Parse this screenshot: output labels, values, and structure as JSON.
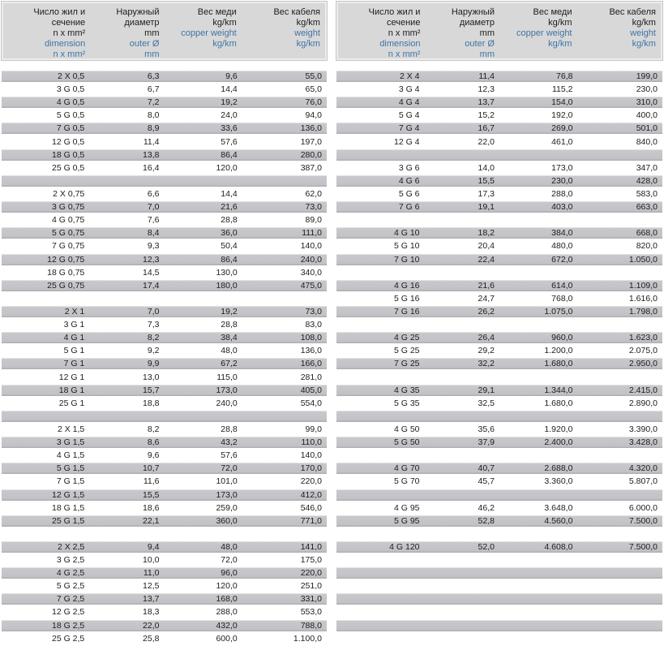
{
  "colors": {
    "header_bg": "#d8d8d8",
    "row_gray": "#c2c2c6",
    "accent_blue": "#3f74a6",
    "text": "#1c1c1c"
  },
  "header": {
    "col_dimension": {
      "ru1": "Число жил и",
      "ru2": "сечение",
      "ru3": "n x mm²",
      "en1": "dimension",
      "en2": "n x mm²"
    },
    "col_outer": {
      "ru1": "Наружный",
      "ru2": "диаметр",
      "ru3": "mm",
      "en1": "outer Ø",
      "en2": "mm"
    },
    "col_copper": {
      "ru1": "Вес меди",
      "ru2": "kg/km",
      "en1": "copper weight",
      "en2": "kg/km"
    },
    "col_cable": {
      "ru1": "Вес кабеля",
      "ru2": "kg/km",
      "en1": "weight",
      "en2": "kg/km"
    }
  },
  "tables": [
    {
      "rows": [
        [
          "2 X 0,5",
          "6,3",
          "9,6",
          "55,0"
        ],
        [
          "3 G 0,5",
          "6,7",
          "14,4",
          "65,0"
        ],
        [
          "4 G 0,5",
          "7,2",
          "19,2",
          "76,0"
        ],
        [
          "5 G 0,5",
          "8,0",
          "24,0",
          "94,0"
        ],
        [
          "7 G 0,5",
          "8,9",
          "33,6",
          "136,0"
        ],
        [
          "12 G 0,5",
          "11,4",
          "57,6",
          "197,0"
        ],
        [
          "18 G 0,5",
          "13,8",
          "86,4",
          "280,0"
        ],
        [
          "25 G 0,5",
          "16,4",
          "120,0",
          "387,0"
        ],
        null,
        [
          "2 X 0,75",
          "6,6",
          "14,4",
          "62,0"
        ],
        [
          "3 G 0,75",
          "7,0",
          "21,6",
          "73,0"
        ],
        [
          "4 G 0,75",
          "7,6",
          "28,8",
          "89,0"
        ],
        [
          "5 G 0,75",
          "8,4",
          "36,0",
          "111,0"
        ],
        [
          "7 G 0,75",
          "9,3",
          "50,4",
          "140,0"
        ],
        [
          "12 G 0,75",
          "12,3",
          "86,4",
          "240,0"
        ],
        [
          "18 G 0,75",
          "14,5",
          "130,0",
          "340,0"
        ],
        [
          "25 G 0,75",
          "17,4",
          "180,0",
          "475,0"
        ],
        null,
        [
          "2 X 1",
          "7,0",
          "19,2",
          "73,0"
        ],
        [
          "3 G 1",
          "7,3",
          "28,8",
          "83,0"
        ],
        [
          "4 G 1",
          "8,2",
          "38,4",
          "108,0"
        ],
        [
          "5 G 1",
          "9,2",
          "48,0",
          "136,0"
        ],
        [
          "7 G 1",
          "9,9",
          "67,2",
          "166,0"
        ],
        [
          "12 G 1",
          "13,0",
          "115,0",
          "281,0"
        ],
        [
          "18 G 1",
          "15,7",
          "173,0",
          "405,0"
        ],
        [
          "25 G 1",
          "18,8",
          "240,0",
          "554,0"
        ],
        null,
        [
          "2 X 1,5",
          "8,2",
          "28,8",
          "99,0"
        ],
        [
          "3 G 1,5",
          "8,6",
          "43,2",
          "110,0"
        ],
        [
          "4 G 1,5",
          "9,6",
          "57,6",
          "140,0"
        ],
        [
          "5 G 1,5",
          "10,7",
          "72,0",
          "170,0"
        ],
        [
          "7 G 1,5",
          "11,6",
          "101,0",
          "220,0"
        ],
        [
          "12 G 1,5",
          "15,5",
          "173,0",
          "412,0"
        ],
        [
          "18 G 1,5",
          "18,6",
          "259,0",
          "546,0"
        ],
        [
          "25 G 1,5",
          "22,1",
          "360,0",
          "771,0"
        ],
        null,
        [
          "2 X 2,5",
          "9,4",
          "48,0",
          "141,0"
        ],
        [
          "3 G 2,5",
          "10,0",
          "72,0",
          "175,0"
        ],
        [
          "4 G 2,5",
          "11,0",
          "96,0",
          "220,0"
        ],
        [
          "5 G 2,5",
          "12,5",
          "120,0",
          "251,0"
        ],
        [
          "7 G 2,5",
          "13,7",
          "168,0",
          "331,0"
        ],
        [
          "12 G 2,5",
          "18,3",
          "288,0",
          "553,0"
        ],
        [
          "18 G 2,5",
          "22,0",
          "432,0",
          "788,0"
        ],
        [
          "25 G 2,5",
          "25,8",
          "600,0",
          "1.100,0"
        ]
      ]
    },
    {
      "rows": [
        [
          "2 X 4",
          "11,4",
          "76,8",
          "199,0"
        ],
        [
          "3 G 4",
          "12,3",
          "115,2",
          "230,0"
        ],
        [
          "4 G 4",
          "13,7",
          "154,0",
          "310,0"
        ],
        [
          "5 G 4",
          "15,2",
          "192,0",
          "400,0"
        ],
        [
          "7 G 4",
          "16,7",
          "269,0",
          "501,0"
        ],
        [
          "12 G 4",
          "22,0",
          "461,0",
          "840,0"
        ],
        null,
        [
          "3 G 6",
          "14,0",
          "173,0",
          "347,0"
        ],
        [
          "4 G 6",
          "15,5",
          "230,0",
          "428,0"
        ],
        [
          "5 G 6",
          "17,3",
          "288,0",
          "583,0"
        ],
        [
          "7 G 6",
          "19,1",
          "403,0",
          "663,0"
        ],
        null,
        [
          "4 G 10",
          "18,2",
          "384,0",
          "668,0"
        ],
        [
          "5 G 10",
          "20,4",
          "480,0",
          "820,0"
        ],
        [
          "7 G 10",
          "22,4",
          "672,0",
          "1.050,0"
        ],
        null,
        [
          "4 G 16",
          "21,6",
          "614,0",
          "1.109,0"
        ],
        [
          "5 G 16",
          "24,7",
          "768,0",
          "1.616,0"
        ],
        [
          "7 G 16",
          "26,2",
          "1.075,0",
          "1.798,0"
        ],
        null,
        [
          "4 G 25",
          "26,4",
          "960,0",
          "1.623,0"
        ],
        [
          "5 G 25",
          "29,2",
          "1.200,0",
          "2.075,0"
        ],
        [
          "7 G 25",
          "32,2",
          "1.680,0",
          "2.950,0"
        ],
        null,
        [
          "4 G 35",
          "29,1",
          "1.344,0",
          "2.415,0"
        ],
        [
          "5 G 35",
          "32,5",
          "1.680,0",
          "2.890,0"
        ],
        null,
        [
          "4 G 50",
          "35,6",
          "1.920,0",
          "3.390,0"
        ],
        [
          "5 G 50",
          "37,9",
          "2.400,0",
          "3.428,0"
        ],
        null,
        [
          "4 G 70",
          "40,7",
          "2.688,0",
          "4.320,0"
        ],
        [
          "5 G 70",
          "45,7",
          "3.360,0",
          "5.807,0"
        ],
        null,
        [
          "4 G 95",
          "46,2",
          "3.648,0",
          "6.000,0"
        ],
        [
          "5 G 95",
          "52,8",
          "4.560,0",
          "7.500,0"
        ],
        null,
        [
          "4 G 120",
          "52,0",
          "4.608,0",
          "7.500,0"
        ],
        null,
        null,
        null,
        null,
        null,
        null,
        null
      ]
    }
  ]
}
